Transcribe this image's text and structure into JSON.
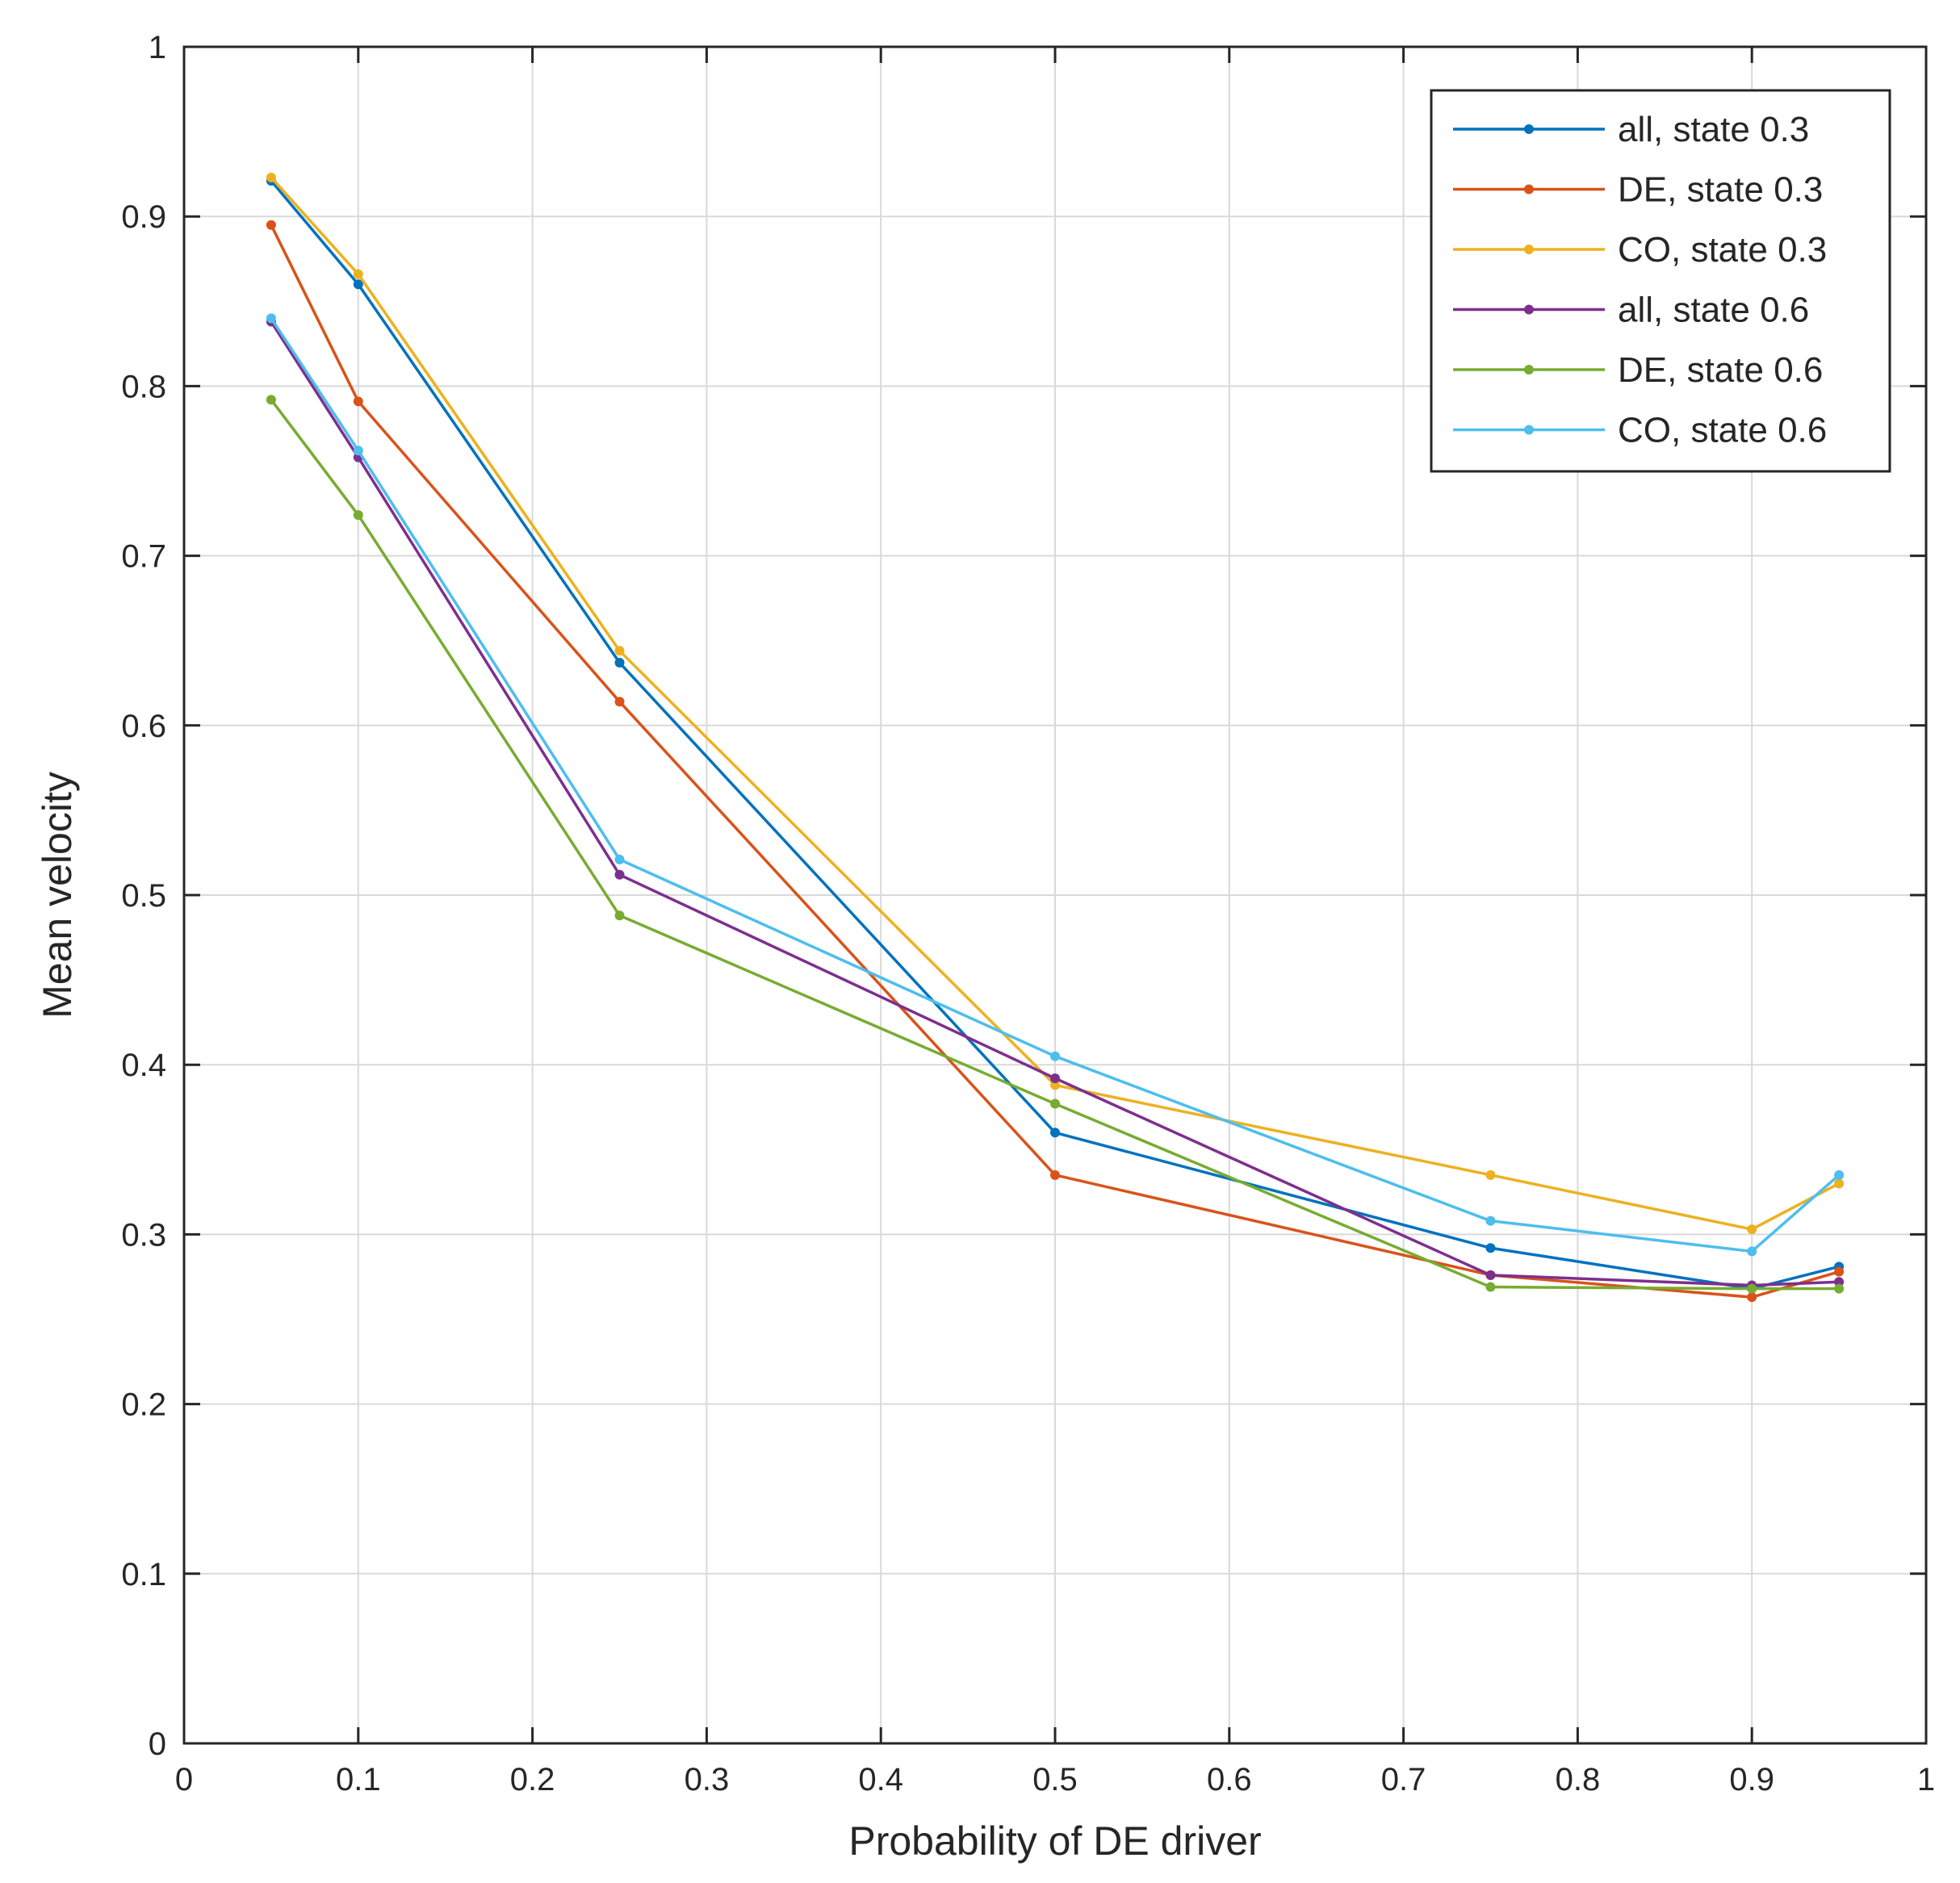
{
  "chart_data": {
    "type": "line",
    "title": "",
    "xlabel": "Probability of DE driver",
    "ylabel": "Mean velocity",
    "xlim": [
      0,
      1
    ],
    "ylim": [
      0,
      1
    ],
    "xticks": [
      0,
      0.1,
      0.2,
      0.3,
      0.4,
      0.5,
      0.6,
      0.7,
      0.8,
      0.9,
      1
    ],
    "yticks": [
      0,
      0.1,
      0.2,
      0.3,
      0.4,
      0.5,
      0.6,
      0.7,
      0.8,
      0.9,
      1
    ],
    "xtick_labels": [
      "0",
      "0.1",
      "0.2",
      "0.3",
      "0.4",
      "0.5",
      "0.6",
      "0.7",
      "0.8",
      "0.9",
      "1"
    ],
    "ytick_labels": [
      "0",
      "0.1",
      "0.2",
      "0.3",
      "0.4",
      "0.5",
      "0.6",
      "0.7",
      "0.8",
      "0.9",
      "1"
    ],
    "grid": true,
    "legend_position": "top-right",
    "x": [
      0.05,
      0.1,
      0.25,
      0.5,
      0.75,
      0.9,
      0.95
    ],
    "series": [
      {
        "name": "all, state 0.3",
        "color": "#0072BD",
        "values": [
          0.921,
          0.86,
          0.637,
          0.36,
          0.292,
          0.268,
          0.281
        ]
      },
      {
        "name": "DE, state 0.3",
        "color": "#D95319",
        "values": [
          0.895,
          0.791,
          0.614,
          0.335,
          0.276,
          0.263,
          0.278
        ]
      },
      {
        "name": "CO, state 0.3",
        "color": "#EDB120",
        "values": [
          0.923,
          0.866,
          0.644,
          0.388,
          0.335,
          0.303,
          0.33
        ]
      },
      {
        "name": "all, state 0.6",
        "color": "#7E2F8E",
        "values": [
          0.838,
          0.758,
          0.512,
          0.392,
          0.276,
          0.27,
          0.272
        ]
      },
      {
        "name": "DE, state 0.6",
        "color": "#77AC30",
        "values": [
          0.792,
          0.724,
          0.488,
          0.377,
          0.269,
          0.268,
          0.268
        ]
      },
      {
        "name": "CO, state 0.6",
        "color": "#4DBEEE",
        "values": [
          0.84,
          0.762,
          0.521,
          0.405,
          0.308,
          0.29,
          0.335
        ]
      }
    ]
  }
}
